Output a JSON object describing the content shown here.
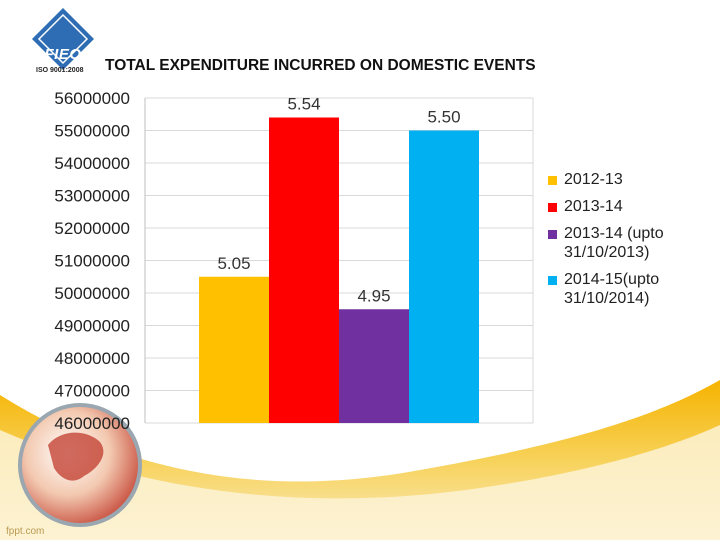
{
  "header": {
    "logo_text": "FIEO",
    "iso_text": "ISO 9001:2008"
  },
  "chart_data": {
    "type": "bar",
    "title": "TOTAL EXPENDITURE INCURRED ON DOMESTIC EVENTS",
    "xlabel": "",
    "ylabel": "",
    "ylim": [
      46000000,
      56000000
    ],
    "yticks": [
      "56000000",
      "55000000",
      "54000000",
      "53000000",
      "52000000",
      "51000000",
      "50000000",
      "49000000",
      "48000000",
      "47000000",
      "46000000"
    ],
    "grid": true,
    "legend_position": "right",
    "series": [
      {
        "name": "2012-13",
        "value": 50500000,
        "label": "5.05",
        "color": "#FFC000"
      },
      {
        "name": "2013-14",
        "value": 55400000,
        "label": "5.54",
        "color": "#FF0000"
      },
      {
        "name": "2013-14 (upto\n31/10/2013)",
        "value": 49500000,
        "label": "4.95",
        "color": "#7030A0"
      },
      {
        "name": "2014-15(upto\n31/10/2014)",
        "value": 55000000,
        "label": "5.50",
        "color": "#00B0F0"
      }
    ]
  },
  "footer": {
    "watermark": "fppt.com"
  }
}
